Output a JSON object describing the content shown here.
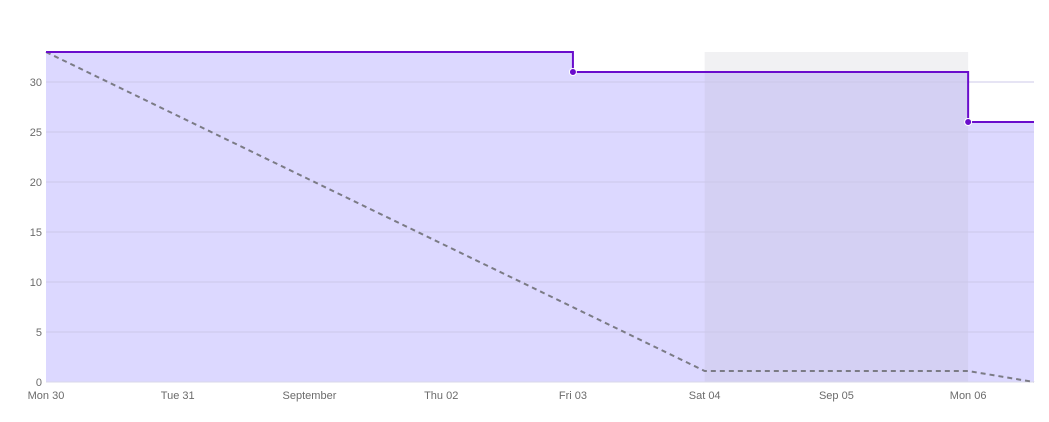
{
  "chart_data": {
    "type": "line",
    "title": "",
    "xlabel": "",
    "ylabel": "",
    "x_ticks": [
      "Mon 30",
      "Tue 31",
      "September",
      "Thu 02",
      "Fri 03",
      "Sat 04",
      "Sep 05",
      "Mon 06"
    ],
    "x_domain": [
      "2021-08-30",
      "2021-09-06 12:00"
    ],
    "y_ticks": [
      0,
      5,
      10,
      15,
      20,
      25,
      30
    ],
    "ylim": [
      0,
      33
    ],
    "grid": true,
    "weekend_band": [
      "2021-09-04",
      "2021-09-06"
    ],
    "series": [
      {
        "style": "step-area",
        "points": [
          {
            "x": "2021-08-30",
            "y": 33
          },
          {
            "x": "2021-09-03",
            "y": 31
          },
          {
            "x": "2021-09-06",
            "y": 26
          },
          {
            "x": "2021-09-06 12:00",
            "y": 26
          }
        ],
        "markers": [
          {
            "x": "2021-09-03",
            "y": 31
          },
          {
            "x": "2021-09-06",
            "y": 26
          }
        ]
      },
      {
        "style": "dashed",
        "points": [
          {
            "x": "2021-08-30",
            "y": 33
          },
          {
            "x": "2021-09-04",
            "y": 1.1
          },
          {
            "x": "2021-09-06",
            "y": 1.1
          },
          {
            "x": "2021-09-06 12:00",
            "y": 0
          }
        ]
      }
    ],
    "colors": {
      "line": "#6a0dcc",
      "area": "#dcd8ff",
      "weekend_band": "#f1f1f3",
      "weekend_band_over_area": "#d4d0f3",
      "guideline": "#7b7b85",
      "grid": "#ccc8ea",
      "axis_text": "#6b6b6b"
    }
  }
}
